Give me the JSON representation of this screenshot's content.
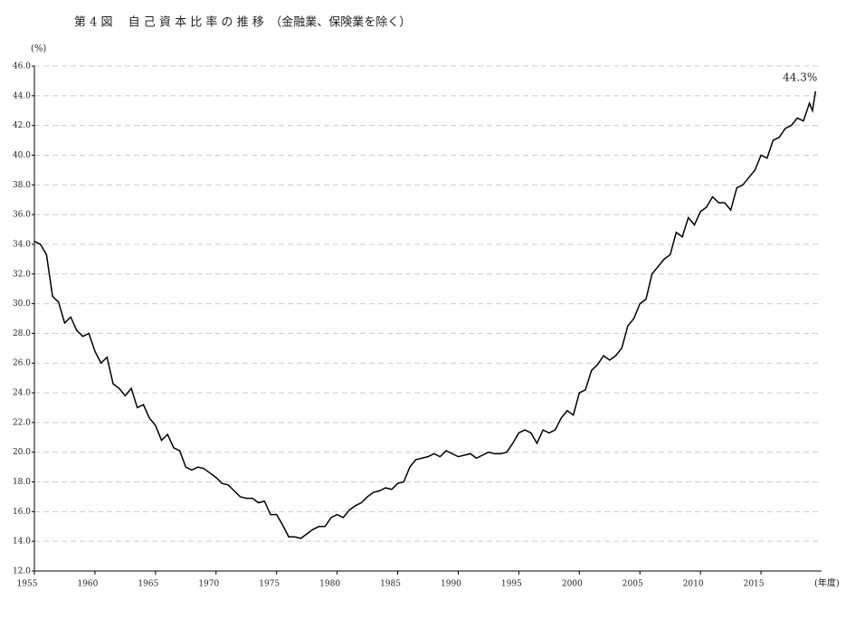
{
  "chart_data": {
    "type": "line",
    "title": "第 4 図　 自 己 資 本 比 率 の 推 移　（金融業、保険業を除く）",
    "y_label": "(%)",
    "x_label": "(年度)",
    "annotation": "44.3%",
    "x": [
      1955,
      1955.5,
      1956,
      1956.5,
      1957,
      1957.5,
      1958,
      1958.5,
      1959,
      1959.5,
      1960,
      1960.5,
      1961,
      1961.5,
      1962,
      1962.5,
      1963,
      1963.5,
      1964,
      1964.5,
      1965,
      1965.5,
      1966,
      1966.5,
      1967,
      1967.5,
      1968,
      1968.5,
      1969,
      1969.5,
      1970,
      1970.5,
      1971,
      1971.5,
      1972,
      1972.5,
      1973,
      1973.5,
      1974,
      1974.5,
      1975,
      1975.5,
      1976,
      1976.5,
      1977,
      1977.5,
      1978,
      1978.5,
      1979,
      1979.5,
      1980,
      1980.5,
      1981,
      1981.5,
      1982,
      1982.5,
      1983,
      1983.5,
      1984,
      1984.5,
      1985,
      1985.5,
      1986,
      1986.5,
      1987,
      1987.5,
      1988,
      1988.5,
      1989,
      1989.5,
      1990,
      1990.5,
      1991,
      1991.5,
      1992,
      1992.5,
      1993,
      1993.5,
      1994,
      1994.5,
      1995,
      1995.5,
      1996,
      1996.5,
      1997,
      1997.5,
      1998,
      1998.5,
      1999,
      1999.5,
      2000,
      2000.5,
      2001,
      2001.5,
      2002,
      2002.5,
      2003,
      2003.5,
      2004,
      2004.5,
      2005,
      2005.5,
      2006,
      2006.5,
      2007,
      2007.5,
      2008,
      2008.5,
      2009,
      2009.5,
      2010,
      2010.5,
      2011,
      2011.5,
      2012,
      2012.5,
      2013,
      2013.5,
      2014,
      2014.5,
      2015,
      2015.5,
      2016,
      2016.5,
      2017,
      2017.5,
      2018,
      2018.5,
      2019,
      2019.25,
      2019.5
    ],
    "series": [
      {
        "color": "#000000",
        "values": [
          34.2,
          34.0,
          33.3,
          30.5,
          30.1,
          28.7,
          29.1,
          28.2,
          27.8,
          28.0,
          26.8,
          26.0,
          26.4,
          24.6,
          24.3,
          23.8,
          24.3,
          23.0,
          23.2,
          22.3,
          21.8,
          20.8,
          21.2,
          20.3,
          20.1,
          19.0,
          18.8,
          19.0,
          18.9,
          18.6,
          18.3,
          17.9,
          17.8,
          17.4,
          17.0,
          16.9,
          16.9,
          16.6,
          16.7,
          15.8,
          15.8,
          15.1,
          14.3,
          14.3,
          14.2,
          14.5,
          14.8,
          15.0,
          15.0,
          15.6,
          15.8,
          15.6,
          16.1,
          16.4,
          16.6,
          17.0,
          17.3,
          17.4,
          17.6,
          17.5,
          17.9,
          18.0,
          19.0,
          19.5,
          19.6,
          19.7,
          19.9,
          19.7,
          20.1,
          19.9,
          19.7,
          19.8,
          19.9,
          19.6,
          19.8,
          20.0,
          19.9,
          19.9,
          20.0,
          20.6,
          21.3,
          21.5,
          21.3,
          20.6,
          21.5,
          21.3,
          21.5,
          22.3,
          22.8,
          22.5,
          24.0,
          24.2,
          25.5,
          25.9,
          26.5,
          26.2,
          26.5,
          27.0,
          28.5,
          29.0,
          30.0,
          30.3,
          32.0,
          32.5,
          33.0,
          33.3,
          34.8,
          34.5,
          35.8,
          35.3,
          36.2,
          36.5,
          37.2,
          36.8,
          36.8,
          36.3,
          37.8,
          38.0,
          38.5,
          39.0,
          40.0,
          39.8,
          41.0,
          41.2,
          41.8,
          42.0,
          42.5,
          42.3,
          43.5,
          43.0,
          44.3
        ]
      }
    ],
    "xlim": [
      1955,
      2020
    ],
    "xticks": [
      1955,
      1960,
      1965,
      1970,
      1975,
      1980,
      1985,
      1990,
      1995,
      2000,
      2005,
      2010,
      2015
    ],
    "ylim": [
      12,
      46
    ],
    "yticks": [
      {
        "value": 12,
        "label": "12.0"
      },
      {
        "value": 14,
        "label": "14.0"
      },
      {
        "value": 16,
        "label": "16.0"
      },
      {
        "value": 18,
        "label": "18.0"
      },
      {
        "value": 20,
        "label": "20.0"
      },
      {
        "value": 22,
        "label": "22.0"
      },
      {
        "value": 24,
        "label": "24.0"
      },
      {
        "value": 26,
        "label": "26.0"
      },
      {
        "value": 28,
        "label": "28.0"
      },
      {
        "value": 30,
        "label": "30.0"
      },
      {
        "value": 32,
        "label": "32.0"
      },
      {
        "value": 34,
        "label": "34.0"
      },
      {
        "value": 36,
        "label": "36.0"
      },
      {
        "value": 38,
        "label": "38.0"
      },
      {
        "value": 40,
        "label": "40.0"
      },
      {
        "value": 42,
        "label": "42.0"
      },
      {
        "value": 44,
        "label": "44.0"
      },
      {
        "value": 46,
        "label": "46.0"
      }
    ],
    "grid": true
  }
}
